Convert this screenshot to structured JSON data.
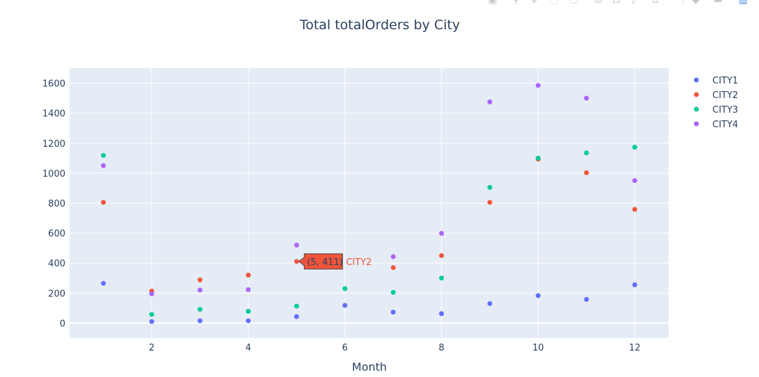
{
  "chart_data": {
    "type": "scatter",
    "title": "Total totalOrders by City",
    "xlabel": "Month",
    "ylabel": "",
    "xlim": [
      0.3,
      12.7
    ],
    "ylim": [
      -100,
      1700
    ],
    "xticks": [
      2,
      4,
      6,
      8,
      10,
      12
    ],
    "yticks": [
      0,
      200,
      400,
      600,
      800,
      1000,
      1200,
      1400,
      1600
    ],
    "grid": true,
    "legend_position": "top-right, outside plot",
    "x": [
      1,
      2,
      3,
      4,
      5,
      6,
      7,
      8,
      9,
      10,
      11,
      12
    ],
    "series": [
      {
        "name": "CITY1",
        "color": "#636efa",
        "values": [
          265,
          10,
          15,
          15,
          43,
          118,
          73,
          63,
          130,
          183,
          158,
          255
        ]
      },
      {
        "name": "CITY2",
        "color": "#ef553b",
        "values": [
          805,
          213,
          288,
          320,
          411,
          null,
          370,
          450,
          805,
          1093,
          1003,
          758
        ]
      },
      {
        "name": "CITY3",
        "color": "#00cc96",
        "values": [
          1118,
          58,
          92,
          78,
          113,
          230,
          205,
          300,
          905,
          1100,
          1135,
          1173
        ]
      },
      {
        "name": "CITY4",
        "color": "#ab63fa",
        "values": [
          1050,
          195,
          220,
          223,
          520,
          null,
          443,
          598,
          1475,
          1585,
          1500,
          950
        ]
      }
    ],
    "hover": {
      "series_index": 1,
      "x": 5,
      "y": 411,
      "label": "(5, 411)",
      "series_label": "CITY2"
    }
  },
  "modebar": {
    "buttons": [
      "camera-icon",
      "zoom-icon",
      "pan-icon",
      "box-select-icon",
      "lasso-icon",
      "zoom-in-icon",
      "zoom-out-icon",
      "autoscale-icon",
      "reset-axes-icon",
      "spike-lines-icon",
      "hover-closest-icon",
      "hover-compare-icon",
      "plotly-logo-icon"
    ]
  }
}
